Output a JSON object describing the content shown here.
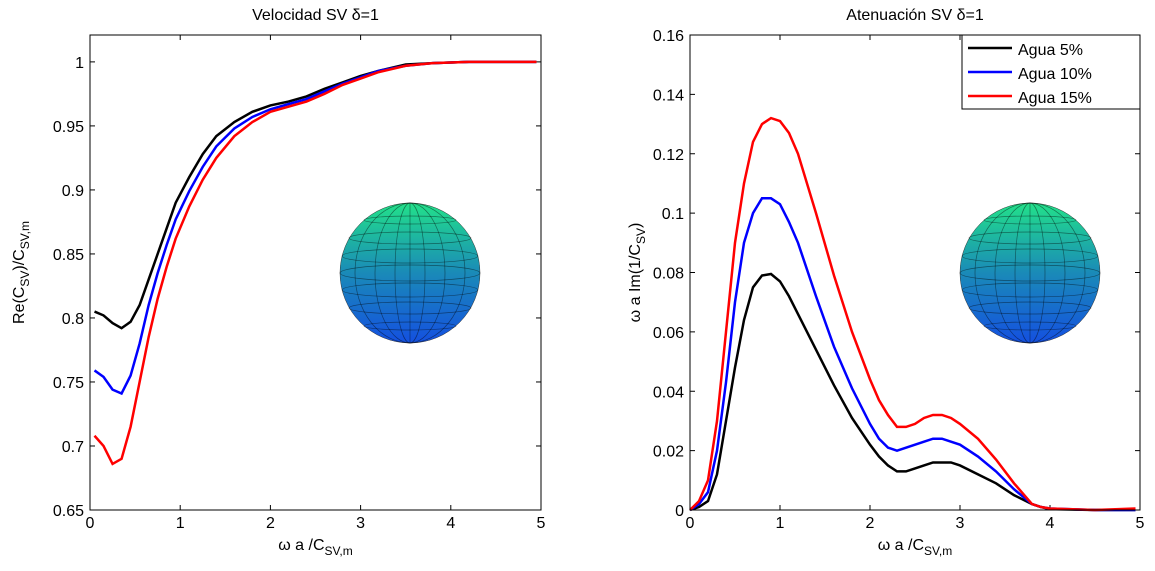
{
  "chart_data": [
    {
      "type": "line",
      "title": "Velocidad SV  δ=1",
      "xlabel": [
        "ω a /C",
        "SV,m"
      ],
      "ylabel": [
        "Re(C",
        "SV",
        ")/C",
        "SV,m"
      ],
      "x": [
        0.05,
        0.15,
        0.25,
        0.35,
        0.45,
        0.55,
        0.65,
        0.75,
        0.85,
        0.95,
        1.1,
        1.25,
        1.4,
        1.6,
        1.8,
        2.0,
        2.2,
        2.4,
        2.6,
        2.8,
        3.0,
        3.2,
        3.5,
        3.8,
        4.2,
        4.6,
        4.95
      ],
      "series": [
        {
          "color": "#000000",
          "values": [
            0.805,
            0.802,
            0.796,
            0.792,
            0.797,
            0.81,
            0.83,
            0.85,
            0.87,
            0.89,
            0.91,
            0.928,
            0.942,
            0.953,
            0.961,
            0.966,
            0.969,
            0.973,
            0.979,
            0.984,
            0.989,
            0.993,
            0.998,
            0.999,
            1,
            1,
            1
          ]
        },
        {
          "color": "#0000ff",
          "values": [
            0.759,
            0.754,
            0.744,
            0.741,
            0.755,
            0.78,
            0.81,
            0.835,
            0.857,
            0.877,
            0.899,
            0.918,
            0.934,
            0.948,
            0.957,
            0.963,
            0.967,
            0.971,
            0.977,
            0.983,
            0.988,
            0.993,
            0.997,
            0.999,
            1,
            1,
            1
          ]
        },
        {
          "color": "#ff0000",
          "values": [
            0.708,
            0.7,
            0.686,
            0.69,
            0.715,
            0.75,
            0.785,
            0.815,
            0.84,
            0.862,
            0.887,
            0.908,
            0.925,
            0.942,
            0.953,
            0.961,
            0.965,
            0.969,
            0.975,
            0.982,
            0.987,
            0.992,
            0.997,
            0.999,
            1,
            1,
            1
          ]
        }
      ],
      "xlim": [
        0,
        5
      ],
      "xticks": [
        0,
        1,
        2,
        3,
        4,
        5
      ],
      "ylim": [
        0.65,
        1.021
      ],
      "yticks": [
        0.65,
        0.7,
        0.75,
        0.8,
        0.85,
        0.9,
        0.95,
        1
      ]
    },
    {
      "type": "line",
      "title": "Atenuación SV δ=1",
      "xlabel": [
        "ω a /C",
        "SV,m"
      ],
      "ylabel": [
        "ω a Im(1/C",
        "SV",
        ")"
      ],
      "x": [
        0,
        0.1,
        0.2,
        0.3,
        0.4,
        0.5,
        0.6,
        0.7,
        0.8,
        0.9,
        1.0,
        1.1,
        1.2,
        1.4,
        1.6,
        1.8,
        2.0,
        2.1,
        2.2,
        2.3,
        2.4,
        2.5,
        2.6,
        2.7,
        2.8,
        2.9,
        3.0,
        3.2,
        3.4,
        3.6,
        3.8,
        3.9,
        4.0,
        4.5,
        4.95
      ],
      "series": [
        {
          "name": "Agua 5%",
          "color": "#000000",
          "values": [
            0,
            0.001,
            0.003,
            0.012,
            0.03,
            0.048,
            0.064,
            0.075,
            0.079,
            0.0795,
            0.077,
            0.072,
            0.066,
            0.054,
            0.042,
            0.031,
            0.022,
            0.018,
            0.015,
            0.013,
            0.013,
            0.014,
            0.015,
            0.016,
            0.016,
            0.016,
            0.015,
            0.012,
            0.009,
            0.005,
            0.002,
            0.001,
            0.0003,
            0,
            0
          ]
        },
        {
          "name": "Agua 10%",
          "color": "#0000ff",
          "values": [
            0,
            0.002,
            0.006,
            0.02,
            0.043,
            0.07,
            0.09,
            0.1,
            0.105,
            0.105,
            0.103,
            0.097,
            0.09,
            0.072,
            0.055,
            0.041,
            0.029,
            0.024,
            0.021,
            0.02,
            0.021,
            0.022,
            0.023,
            0.024,
            0.024,
            0.023,
            0.022,
            0.018,
            0.013,
            0.007,
            0.002,
            0.001,
            0.0005,
            0,
            0
          ]
        },
        {
          "name": "Agua 15%",
          "color": "#ff0000",
          "values": [
            0,
            0.003,
            0.01,
            0.03,
            0.06,
            0.09,
            0.11,
            0.124,
            0.13,
            0.132,
            0.131,
            0.127,
            0.12,
            0.1,
            0.079,
            0.06,
            0.044,
            0.037,
            0.032,
            0.028,
            0.028,
            0.029,
            0.031,
            0.032,
            0.032,
            0.031,
            0.029,
            0.024,
            0.017,
            0.009,
            0.002,
            0.001,
            0.0005,
            0,
            0.0005
          ]
        }
      ],
      "xlim": [
        0,
        5
      ],
      "xticks": [
        0,
        1,
        2,
        3,
        4,
        5
      ],
      "ylim": [
        0,
        0.16
      ],
      "yticks": [
        0,
        0.02,
        0.04,
        0.06,
        0.08,
        0.1,
        0.12,
        0.14,
        0.16
      ],
      "legend": "upper right"
    }
  ]
}
